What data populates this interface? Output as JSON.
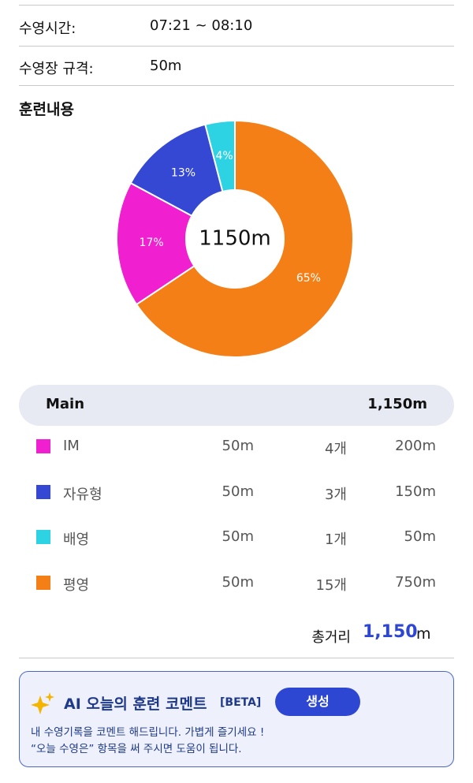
{
  "info": [
    {
      "label": "수영시간:",
      "value": "07:21 ~ 08:10"
    },
    {
      "label": "수영장 규격:",
      "value": "50m"
    }
  ],
  "section_title": "훈련내용",
  "chart_data": {
    "type": "donut",
    "center_label": "1150m",
    "values": [
      65,
      17,
      13,
      4
    ],
    "value_labels": [
      "65%",
      "17%",
      "13%",
      "4%"
    ],
    "colors": [
      "#f57f17",
      "#f01fcf",
      "#3448d4",
      "#2ed3e3"
    ]
  },
  "table": {
    "header": {
      "name": "Main",
      "total": "1,150m"
    },
    "rows": [
      {
        "color": "#f01fcf",
        "name": "IM",
        "pool": "50m",
        "count": "4개",
        "distance": "200m"
      },
      {
        "color": "#3448d4",
        "name": "자유형",
        "pool": "50m",
        "count": "3개",
        "distance": "150m"
      },
      {
        "color": "#2ed3e3",
        "name": "배영",
        "pool": "50m",
        "count": "1개",
        "distance": "50m"
      },
      {
        "color": "#f57f17",
        "name": "평영",
        "pool": "50m",
        "count": "15개",
        "distance": "750m"
      }
    ]
  },
  "total": {
    "label": "총거리",
    "value": "1,150",
    "unit": "m"
  },
  "ai_comment": {
    "title": "AI 오늘의 훈련 코멘트",
    "badge": "[BETA]",
    "button": "생성",
    "lines": [
      "내 수영기록을 코멘트 해드립니다. 가볍게 즐기세요 !",
      "“오늘 수영은” 항목을 써 주시면 도움이 됩니다."
    ]
  }
}
